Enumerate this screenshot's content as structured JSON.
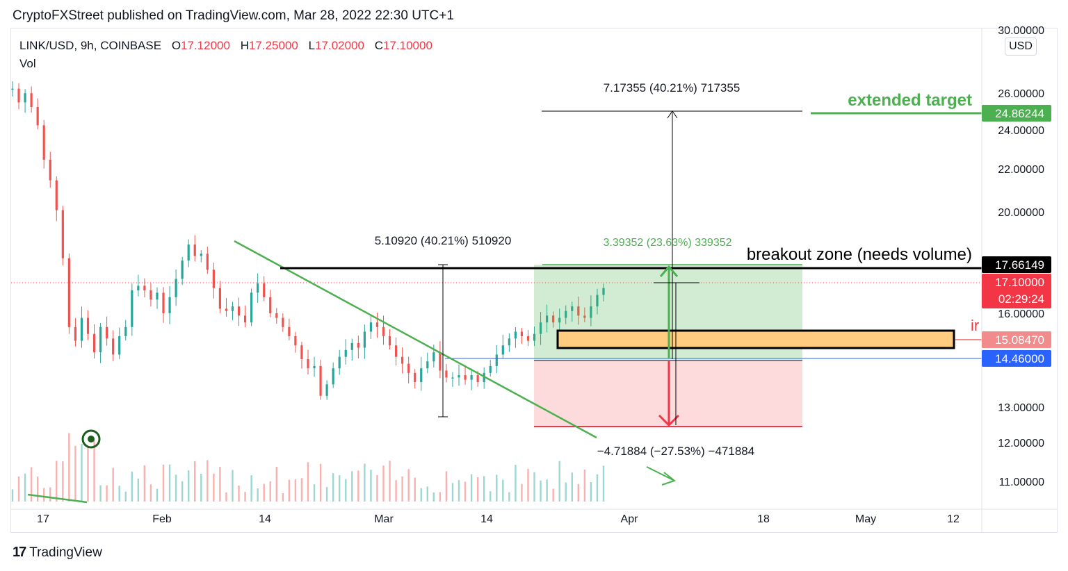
{
  "header": {
    "published": "CryptoFXStreet published on TradingView.com, Mar 28, 2022 22:30 UTC+1"
  },
  "legend": {
    "symbol": "LINK/USD, 9h, COINBASE",
    "o_label": "O",
    "o_value": "17.12000",
    "h_label": "H",
    "h_value": "17.25000",
    "l_label": "L",
    "l_value": "17.02000",
    "c_label": "C",
    "c_value": "17.10000",
    "vol_label": "Vol"
  },
  "currency": "USD",
  "footer": {
    "brand": "TradingView",
    "logo_glyph": "17"
  },
  "colors": {
    "up": "#26a69a",
    "down": "#ef5350",
    "green_line": "#4caf50",
    "red_line": "#f23645",
    "orange_zone": "#ffcc80"
  },
  "chart_data": {
    "type": "candlestick",
    "y_axis_labels": [
      "30.00000",
      "26.00000",
      "24.00000",
      "22.00000",
      "20.00000",
      "16.00000",
      "13.00000",
      "12.00000",
      "11.00000"
    ],
    "x_axis_labels": [
      "17",
      "Feb",
      "14",
      "Mar",
      "14",
      "Apr",
      "18",
      "May",
      "12"
    ],
    "price_tags": [
      {
        "value": "24.86244",
        "color": "#4caf50",
        "text_color": "#ffffff"
      },
      {
        "value": "17.66149",
        "color": "#000000",
        "text_color": "#ffffff"
      },
      {
        "value": "17.10000",
        "sub": "02:29:24",
        "color": "#f23645",
        "text_color": "#ffffff"
      },
      {
        "value": "15.08470",
        "color": "#f28b8b",
        "text_color": "#ffffff"
      },
      {
        "value": "14.46000",
        "color": "#2962ff",
        "text_color": "#ffffff"
      }
    ],
    "annotations": {
      "extended_target": "extended target",
      "breakout_zone": "breakout zone (needs volume)",
      "partial_label": "ir",
      "measure_top": "7.17355 (40.21%) 717355",
      "measure_left": "5.10920 (40.21%) 510920",
      "measure_profit": "3.39352 (23.63%) 339352",
      "measure_loss": "−4.71884 (−27.53%) −471884"
    },
    "price_path": [
      [
        0,
        25.8
      ],
      [
        2,
        25.2
      ],
      [
        4,
        25.6
      ],
      [
        6,
        25.0
      ],
      [
        8,
        24.2
      ],
      [
        10,
        22.7
      ],
      [
        12,
        21.8
      ],
      [
        14,
        20.5
      ],
      [
        16,
        18.4
      ],
      [
        18,
        15.4
      ],
      [
        20,
        14.8
      ],
      [
        22,
        15.8
      ],
      [
        24,
        15.1
      ],
      [
        26,
        14.3
      ],
      [
        28,
        15.4
      ],
      [
        30,
        14.9
      ],
      [
        32,
        14.2
      ],
      [
        34,
        15.0
      ],
      [
        36,
        15.4
      ],
      [
        38,
        17.0
      ],
      [
        40,
        17.2
      ],
      [
        42,
        17.0
      ],
      [
        44,
        16.6
      ],
      [
        46,
        16.9
      ],
      [
        48,
        16.0
      ],
      [
        50,
        16.7
      ],
      [
        52,
        17.5
      ],
      [
        54,
        18.3
      ],
      [
        56,
        19.0
      ],
      [
        58,
        18.5
      ],
      [
        60,
        18.6
      ],
      [
        62,
        17.9
      ],
      [
        64,
        17.1
      ],
      [
        66,
        16.2
      ],
      [
        68,
        16.1
      ],
      [
        70,
        16.3
      ],
      [
        72,
        15.9
      ],
      [
        74,
        15.6
      ],
      [
        76,
        16.9
      ],
      [
        78,
        17.3
      ],
      [
        80,
        16.7
      ],
      [
        82,
        16.0
      ],
      [
        84,
        15.8
      ],
      [
        86,
        15.4
      ],
      [
        88,
        15.0
      ],
      [
        90,
        14.6
      ],
      [
        92,
        14.0
      ],
      [
        94,
        13.6
      ],
      [
        96,
        13.7
      ],
      [
        98,
        12.4
      ],
      [
        100,
        12.9
      ],
      [
        102,
        13.6
      ],
      [
        104,
        14.1
      ],
      [
        106,
        14.4
      ],
      [
        108,
        14.7
      ],
      [
        110,
        14.5
      ],
      [
        112,
        15.2
      ],
      [
        114,
        15.6
      ],
      [
        116,
        15.4
      ],
      [
        118,
        15.0
      ],
      [
        120,
        14.6
      ],
      [
        122,
        14.1
      ],
      [
        124,
        13.8
      ],
      [
        126,
        13.4
      ],
      [
        128,
        13.0
      ],
      [
        130,
        13.6
      ],
      [
        132,
        13.9
      ],
      [
        134,
        14.3
      ],
      [
        136,
        13.5
      ],
      [
        138,
        13.2
      ],
      [
        140,
        13.2
      ],
      [
        142,
        13.3
      ],
      [
        144,
        13.1
      ],
      [
        146,
        13.3
      ],
      [
        148,
        13.0
      ],
      [
        150,
        13.4
      ],
      [
        152,
        13.7
      ],
      [
        154,
        14.2
      ],
      [
        156,
        14.6
      ],
      [
        158,
        14.9
      ],
      [
        160,
        15.2
      ],
      [
        162,
        15.0
      ],
      [
        164,
        14.8
      ],
      [
        166,
        15.1
      ],
      [
        168,
        15.6
      ],
      [
        170,
        15.9
      ],
      [
        172,
        15.6
      ],
      [
        174,
        15.8
      ],
      [
        176,
        16.1
      ],
      [
        178,
        16.3
      ],
      [
        180,
        15.9
      ],
      [
        182,
        15.8
      ],
      [
        184,
        16.3
      ],
      [
        186,
        16.8
      ],
      [
        188,
        17.1
      ]
    ]
  }
}
